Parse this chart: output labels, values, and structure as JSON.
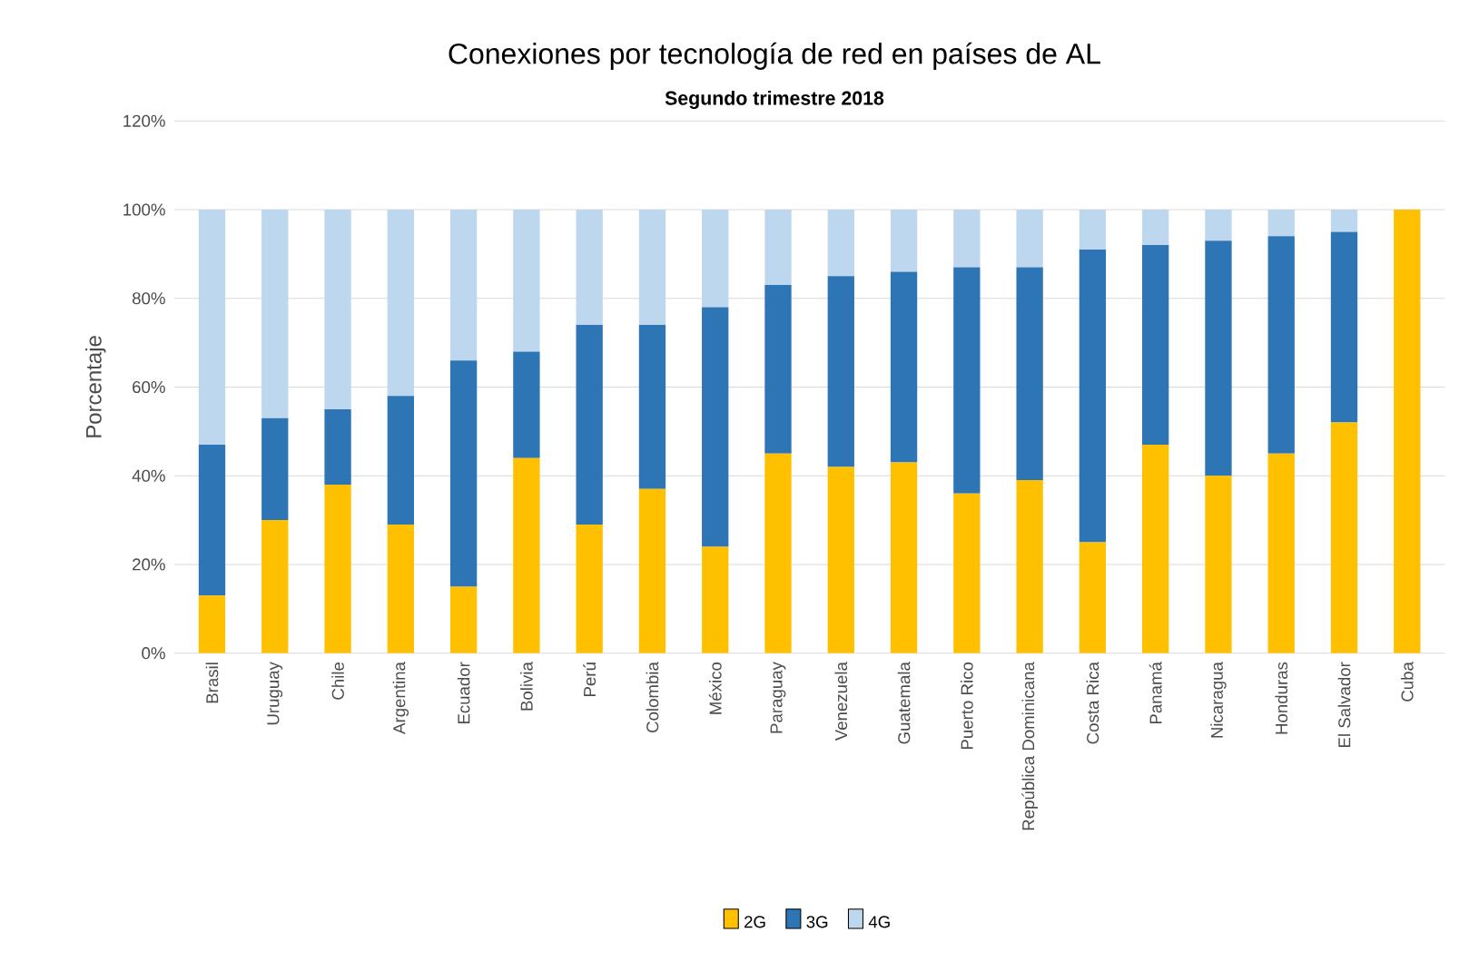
{
  "chart_data": {
    "type": "bar",
    "stacked": true,
    "title": "Conexiones por tecnología de red en países de AL",
    "subtitle": "Segundo trimestre 2018",
    "ylabel": "Porcentaje",
    "categories": [
      "Brasil",
      "Uruguay",
      "Chile",
      "Argentina",
      "Ecuador",
      "Bolivia",
      "Perú",
      "Colombia",
      "México",
      "Paraguay",
      "Venezuela",
      "Guatemala",
      "Puerto Rico",
      "República Dominicana",
      "Costa Rica",
      "Panamá",
      "Nicaragua",
      "Honduras",
      "El Salvador",
      "Cuba"
    ],
    "series": [
      {
        "name": "2G",
        "color": "#ffc000",
        "values": [
          13,
          30,
          38,
          29,
          15,
          44,
          29,
          37,
          24,
          45,
          42,
          43,
          36,
          39,
          25,
          47,
          40,
          45,
          52,
          100
        ]
      },
      {
        "name": "3G",
        "color": "#2e75b6",
        "values": [
          34,
          23,
          17,
          29,
          51,
          24,
          45,
          37,
          54,
          38,
          43,
          43,
          51,
          48,
          66,
          45,
          53,
          49,
          43,
          0
        ]
      },
      {
        "name": "4G",
        "color": "#bdd7ee",
        "values": [
          53,
          47,
          45,
          42,
          34,
          32,
          26,
          26,
          22,
          17,
          15,
          14,
          13,
          13,
          9,
          8,
          7,
          6,
          5,
          0
        ]
      }
    ],
    "ylim": [
      0,
      120
    ],
    "yticks": [
      {
        "value": 0,
        "label": "0%"
      },
      {
        "value": 20,
        "label": "20%"
      },
      {
        "value": 40,
        "label": "40%"
      },
      {
        "value": 60,
        "label": "60%"
      },
      {
        "value": 80,
        "label": "80%"
      },
      {
        "value": 100,
        "label": "100%"
      },
      {
        "value": 120,
        "label": "120%"
      }
    ],
    "grid": "y",
    "legend": "bottom"
  }
}
